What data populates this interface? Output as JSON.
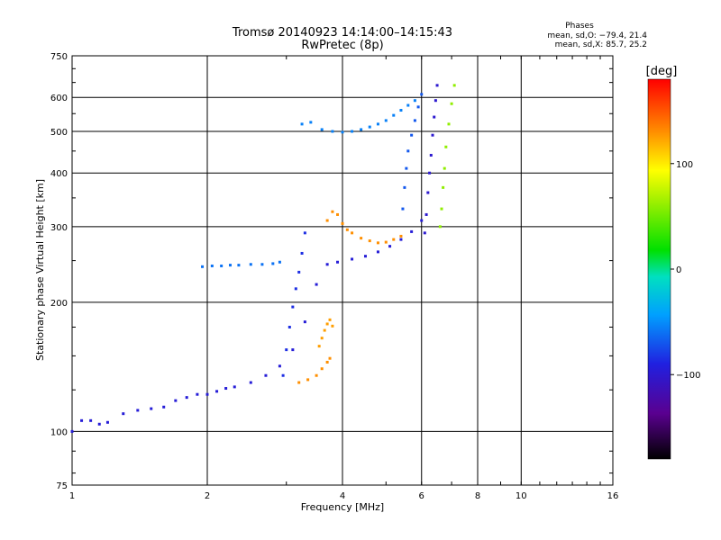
{
  "chart_data": {
    "type": "scatter",
    "title": "Tromsø 20140923 14:14:00–14:15:43",
    "subtitle": "RwPretec (8p)",
    "xlabel": "Frequency [MHz]",
    "ylabel": "Stationary phase Virtual Height [km]",
    "xscale": "log",
    "yscale": "log",
    "xlim": [
      1,
      16
    ],
    "ylim": [
      75,
      750
    ],
    "x_ticks": [
      {
        "value": 1,
        "label": "1"
      },
      {
        "value": 2,
        "label": "2"
      },
      {
        "value": 4,
        "label": "4"
      },
      {
        "value": 6,
        "label": "6"
      },
      {
        "value": 8,
        "label": "8"
      },
      {
        "value": 10,
        "label": "10"
      },
      {
        "value": 16,
        "label": "16"
      }
    ],
    "y_ticks": [
      {
        "value": 75,
        "label": "75"
      },
      {
        "value": 100,
        "label": "100"
      },
      {
        "value": 200,
        "label": "200"
      },
      {
        "value": 300,
        "label": "300"
      },
      {
        "value": 400,
        "label": "400"
      },
      {
        "value": 500,
        "label": "500"
      },
      {
        "value": 600,
        "label": "600"
      },
      {
        "value": 750,
        "label": "750"
      }
    ],
    "grid": true,
    "phases": {
      "heading": "Phases",
      "line_o": "mean, sd,O: −79.4, 21.4",
      "line_x": "mean, sd,X:  85.7, 25.2"
    },
    "colorbar": {
      "title": "[deg]",
      "range": [
        -180,
        180
      ],
      "ticks": [
        {
          "value": 100,
          "label": "100"
        },
        {
          "value": 0,
          "label": "0"
        },
        {
          "value": -100,
          "label": "−100"
        }
      ],
      "colormap": "rainbow (black→purple→blue→cyan→green→yellow→orange→red)"
    },
    "series": [
      {
        "x": [
          1.0,
          1.05,
          1.1,
          1.15,
          1.2,
          1.3,
          1.4,
          1.5,
          1.6,
          1.7,
          1.8,
          1.9,
          2.0,
          2.1,
          2.2,
          2.3,
          2.5,
          2.7,
          2.9,
          3.1,
          3.3,
          3.5,
          3.7,
          3.9,
          4.2,
          4.5,
          4.8,
          5.1,
          5.4,
          5.7,
          6.0
        ],
        "y": [
          100,
          106,
          106,
          104,
          105,
          110,
          112,
          113,
          114,
          118,
          120,
          122,
          122,
          124,
          126,
          127,
          130,
          135,
          142,
          155,
          180,
          220,
          245,
          248,
          252,
          256,
          262,
          270,
          280,
          292,
          310
        ],
        "phase": -95
      },
      {
        "x": [
          2.95,
          3.0,
          3.05,
          3.1,
          3.15,
          3.2,
          3.25,
          3.3
        ],
        "y": [
          135,
          155,
          175,
          195,
          215,
          235,
          260,
          290
        ],
        "phase": -85
      },
      {
        "x": [
          1.95,
          2.05,
          2.15,
          2.25,
          2.35,
          2.5,
          2.65,
          2.8,
          2.9
        ],
        "y": [
          242,
          243,
          243,
          244,
          244,
          245,
          245,
          246,
          248
        ],
        "phase": -60
      },
      {
        "x": [
          3.25,
          3.4,
          3.6,
          3.8,
          4.0,
          4.2,
          4.4,
          4.6,
          4.8,
          5.0,
          5.2,
          5.4,
          5.6,
          5.8
        ],
        "y": [
          520,
          525,
          505,
          500,
          498,
          500,
          505,
          512,
          520,
          530,
          545,
          560,
          575,
          590
        ],
        "phase": -55
      },
      {
        "x": [
          5.45,
          5.5,
          5.55,
          5.6,
          5.7,
          5.8,
          5.9,
          6.0
        ],
        "y": [
          330,
          370,
          410,
          450,
          490,
          530,
          570,
          610
        ],
        "phase": -70
      },
      {
        "x": [
          6.1,
          6.15,
          6.2,
          6.25,
          6.3,
          6.35,
          6.4,
          6.45,
          6.5
        ],
        "y": [
          290,
          320,
          360,
          400,
          440,
          490,
          540,
          590,
          640
        ],
        "phase": -100
      },
      {
        "x": [
          6.6,
          6.65,
          6.7,
          6.75,
          6.8,
          6.9,
          7.0,
          7.1
        ],
        "y": [
          300,
          330,
          370,
          410,
          460,
          520,
          580,
          640
        ],
        "phase": 60
      },
      {
        "x": [
          3.7,
          3.8,
          3.9,
          4.0,
          4.1,
          4.2,
          4.4,
          4.6,
          4.8,
          5.0,
          5.2,
          5.4
        ],
        "y": [
          310,
          325,
          320,
          305,
          295,
          290,
          282,
          278,
          275,
          276,
          280,
          285
        ],
        "phase": 130
      },
      {
        "x": [
          3.55,
          3.6,
          3.65,
          3.7,
          3.75,
          3.8
        ],
        "y": [
          158,
          165,
          172,
          178,
          182,
          176
        ],
        "phase": 125
      },
      {
        "x": [
          3.2,
          3.35,
          3.5,
          3.6,
          3.7,
          3.75
        ],
        "y": [
          130,
          132,
          135,
          140,
          145,
          148
        ],
        "phase": 130
      }
    ]
  }
}
